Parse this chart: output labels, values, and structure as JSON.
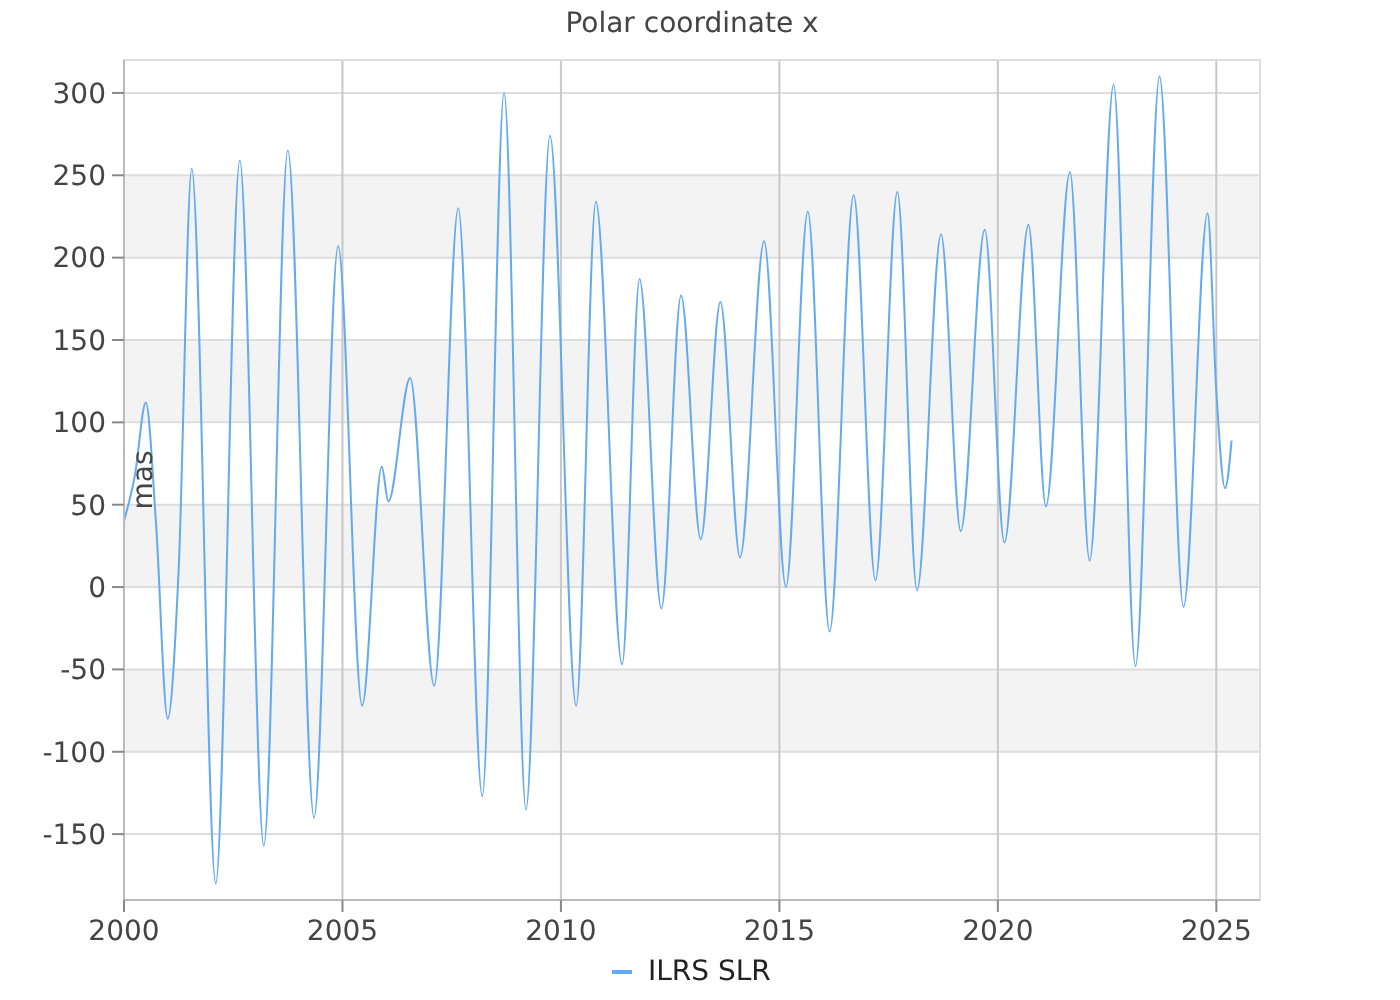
{
  "chart_data": {
    "type": "line",
    "title": "Polar coordinate x",
    "ylabel": "mas",
    "x": [
      2000.0,
      2000.25,
      2000.5,
      2000.73,
      2001.0,
      2001.25,
      2001.55,
      2002.1,
      2002.65,
      2003.2,
      2003.75,
      2004.35,
      2004.9,
      2005.45,
      2005.9,
      2006.05,
      2006.55,
      2007.1,
      2007.65,
      2008.2,
      2008.7,
      2009.2,
      2009.75,
      2010.35,
      2010.8,
      2011.4,
      2011.8,
      2012.3,
      2012.75,
      2013.2,
      2013.65,
      2014.1,
      2014.65,
      2015.15,
      2015.65,
      2016.15,
      2016.7,
      2017.2,
      2017.7,
      2018.15,
      2018.7,
      2019.15,
      2019.7,
      2020.15,
      2020.7,
      2021.1,
      2021.65,
      2022.1,
      2022.65,
      2023.15,
      2023.7,
      2024.25,
      2024.8,
      2025.0,
      2025.2,
      2025.35
    ],
    "series": [
      {
        "name": "ILRS SLR",
        "color": "#64aaf0",
        "values": [
          40,
          68,
          112,
          40,
          -80,
          10,
          254,
          -180,
          259,
          -157,
          265,
          -140,
          207,
          -72,
          73,
          52,
          127,
          -60,
          230,
          -127,
          300,
          -135,
          274,
          -72,
          234,
          -47,
          187,
          -13,
          177,
          29,
          173,
          18,
          210,
          0,
          228,
          -27,
          238,
          4,
          240,
          -2,
          214,
          34,
          217,
          27,
          220,
          49,
          252,
          16,
          305,
          -48,
          310,
          -12,
          227,
          119,
          60,
          89
        ]
      }
    ],
    "xlim": [
      2000,
      2026
    ],
    "xticks": [
      2000,
      2005,
      2010,
      2015,
      2020,
      2025
    ],
    "ylim": [
      -190,
      320
    ],
    "yticks": [
      -150,
      -100,
      -50,
      0,
      50,
      100,
      150,
      200,
      250,
      300
    ],
    "grid": true,
    "legend": "bottom",
    "marker": "none",
    "line_style": "solid"
  }
}
